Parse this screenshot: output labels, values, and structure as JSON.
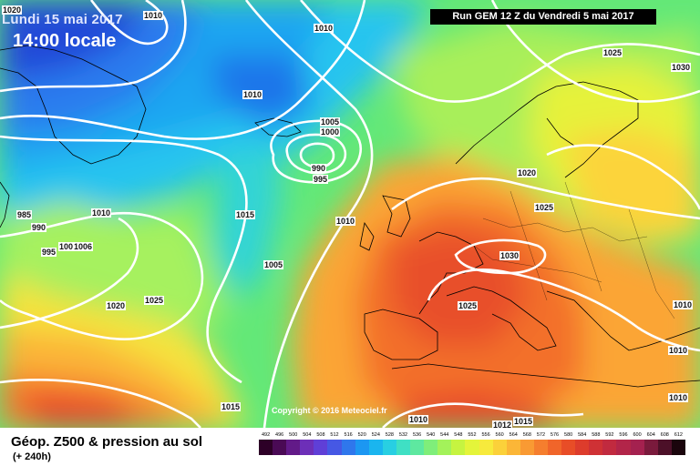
{
  "header": {
    "date": "Lundi 15 mai 2017",
    "time": "14:00 locale",
    "run": "Run GEM 12 Z du Vendredi 5 mai 2017"
  },
  "map": {
    "copyright": "Copyright © 2016 Meteociel.fr",
    "isobar_labels": [
      "1010",
      "1020",
      "1010",
      "1010",
      "1005",
      "1000",
      "990",
      "995",
      "1025",
      "1030",
      "1020",
      "1025",
      "1010",
      "985",
      "990",
      "995",
      "1001",
      "1006",
      "1010",
      "1015",
      "1005",
      "1030",
      "1025",
      "1020",
      "1025",
      "1010",
      "1015",
      "1010",
      "1012",
      "1015",
      "1010",
      "1010"
    ]
  },
  "footer": {
    "title": "Géop. Z500 & pression au sol",
    "subtitle": "(+ 240h)"
  },
  "legend": {
    "values": [
      "492",
      "496",
      "500",
      "504",
      "508",
      "512",
      "516",
      "520",
      "524",
      "528",
      "532",
      "536",
      "540",
      "544",
      "548",
      "552",
      "556",
      "560",
      "564",
      "568",
      "572",
      "576",
      "580",
      "584",
      "588",
      "592",
      "596",
      "600",
      "604",
      "608",
      "612"
    ],
    "colors": [
      "#2d0027",
      "#4a0a55",
      "#621a88",
      "#6d2fb8",
      "#5f3fd7",
      "#4658e4",
      "#2f77ec",
      "#1c97f2",
      "#1ab5ef",
      "#28cfe2",
      "#3fe0c4",
      "#5ee8a0",
      "#7fee7a",
      "#a3f25a",
      "#c6f440",
      "#e4f43a",
      "#f7ea3c",
      "#fbd13a",
      "#fbb637",
      "#f99a33",
      "#f57e2e",
      "#f0652a",
      "#e84d27",
      "#dd3c2c",
      "#cf3135",
      "#c12a3f",
      "#b22549",
      "#a4214f",
      "#7a1a3c",
      "#4c1028",
      "#1a050c"
    ]
  }
}
